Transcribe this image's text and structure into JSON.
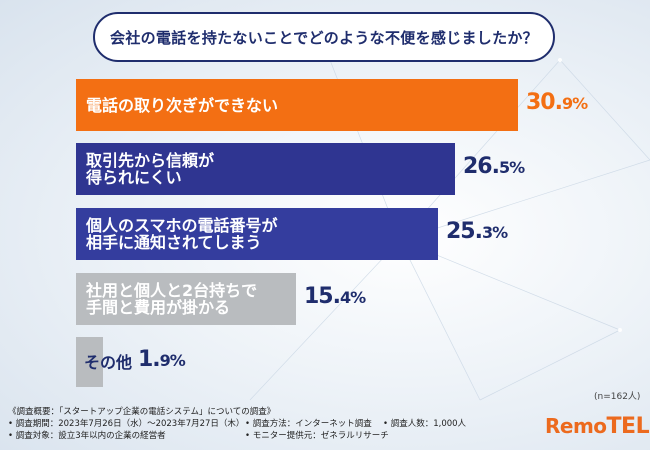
{
  "question": "会社の電話を持たないことでどのような不便を感じましたか？",
  "sample_note": "(n=162人)",
  "chart_data": {
    "type": "bar",
    "orientation": "horizontal",
    "title": "会社の電話を持たないことでどのような不便を感じましたか？",
    "unit": "%",
    "categories": [
      [
        "電話の取り次ぎができない"
      ],
      [
        "取引先から信頼が",
        "得られにくい"
      ],
      [
        "個人のスマホの電話番号が",
        "相手に通知されてしまう"
      ],
      [
        "社用と個人と2台持ちで",
        "手間と費用が掛かる"
      ],
      [
        "その他"
      ]
    ],
    "values": [
      30.9,
      26.5,
      25.3,
      15.4,
      1.9
    ],
    "value_labels": [
      {
        "int": "30.",
        "dec": "9%"
      },
      {
        "int": "26.",
        "dec": "5%"
      },
      {
        "int": "25.",
        "dec": "3%"
      },
      {
        "int": "15.",
        "dec": "4%"
      },
      {
        "int": "1.",
        "dec": "9%"
      }
    ],
    "colors": [
      "#f36f13",
      "#2f3591",
      "#343d9e",
      "#b9bcbf",
      "#b9bcbf"
    ],
    "label_colors": [
      "#f36f13",
      "#1f2d6d",
      "#1f2d6d",
      "#1f2d6d",
      "#1f2d6d"
    ],
    "bar_text_colors": [
      "#ffffff",
      "#ffffff",
      "#ffffff",
      "#ffffff",
      "#1f2d6d"
    ]
  },
  "footer": {
    "line1": "《調査概要：「スタートアップ企業の電話システム」についての調査》",
    "line2_left": "• 調査期間：2023年7月26日（水）〜2023年7月27日（木）",
    "line2_mid": "• 調査方法：インターネット調査",
    "line2_right": "• 調査人数：1,000人",
    "line3_left": "• 調査対象：設立3年以内の企業の経営者",
    "line3_mid": "• モニター提供元：ゼネラルリサーチ"
  },
  "logo": {
    "part1": "Remo",
    "part2": "TEL"
  }
}
